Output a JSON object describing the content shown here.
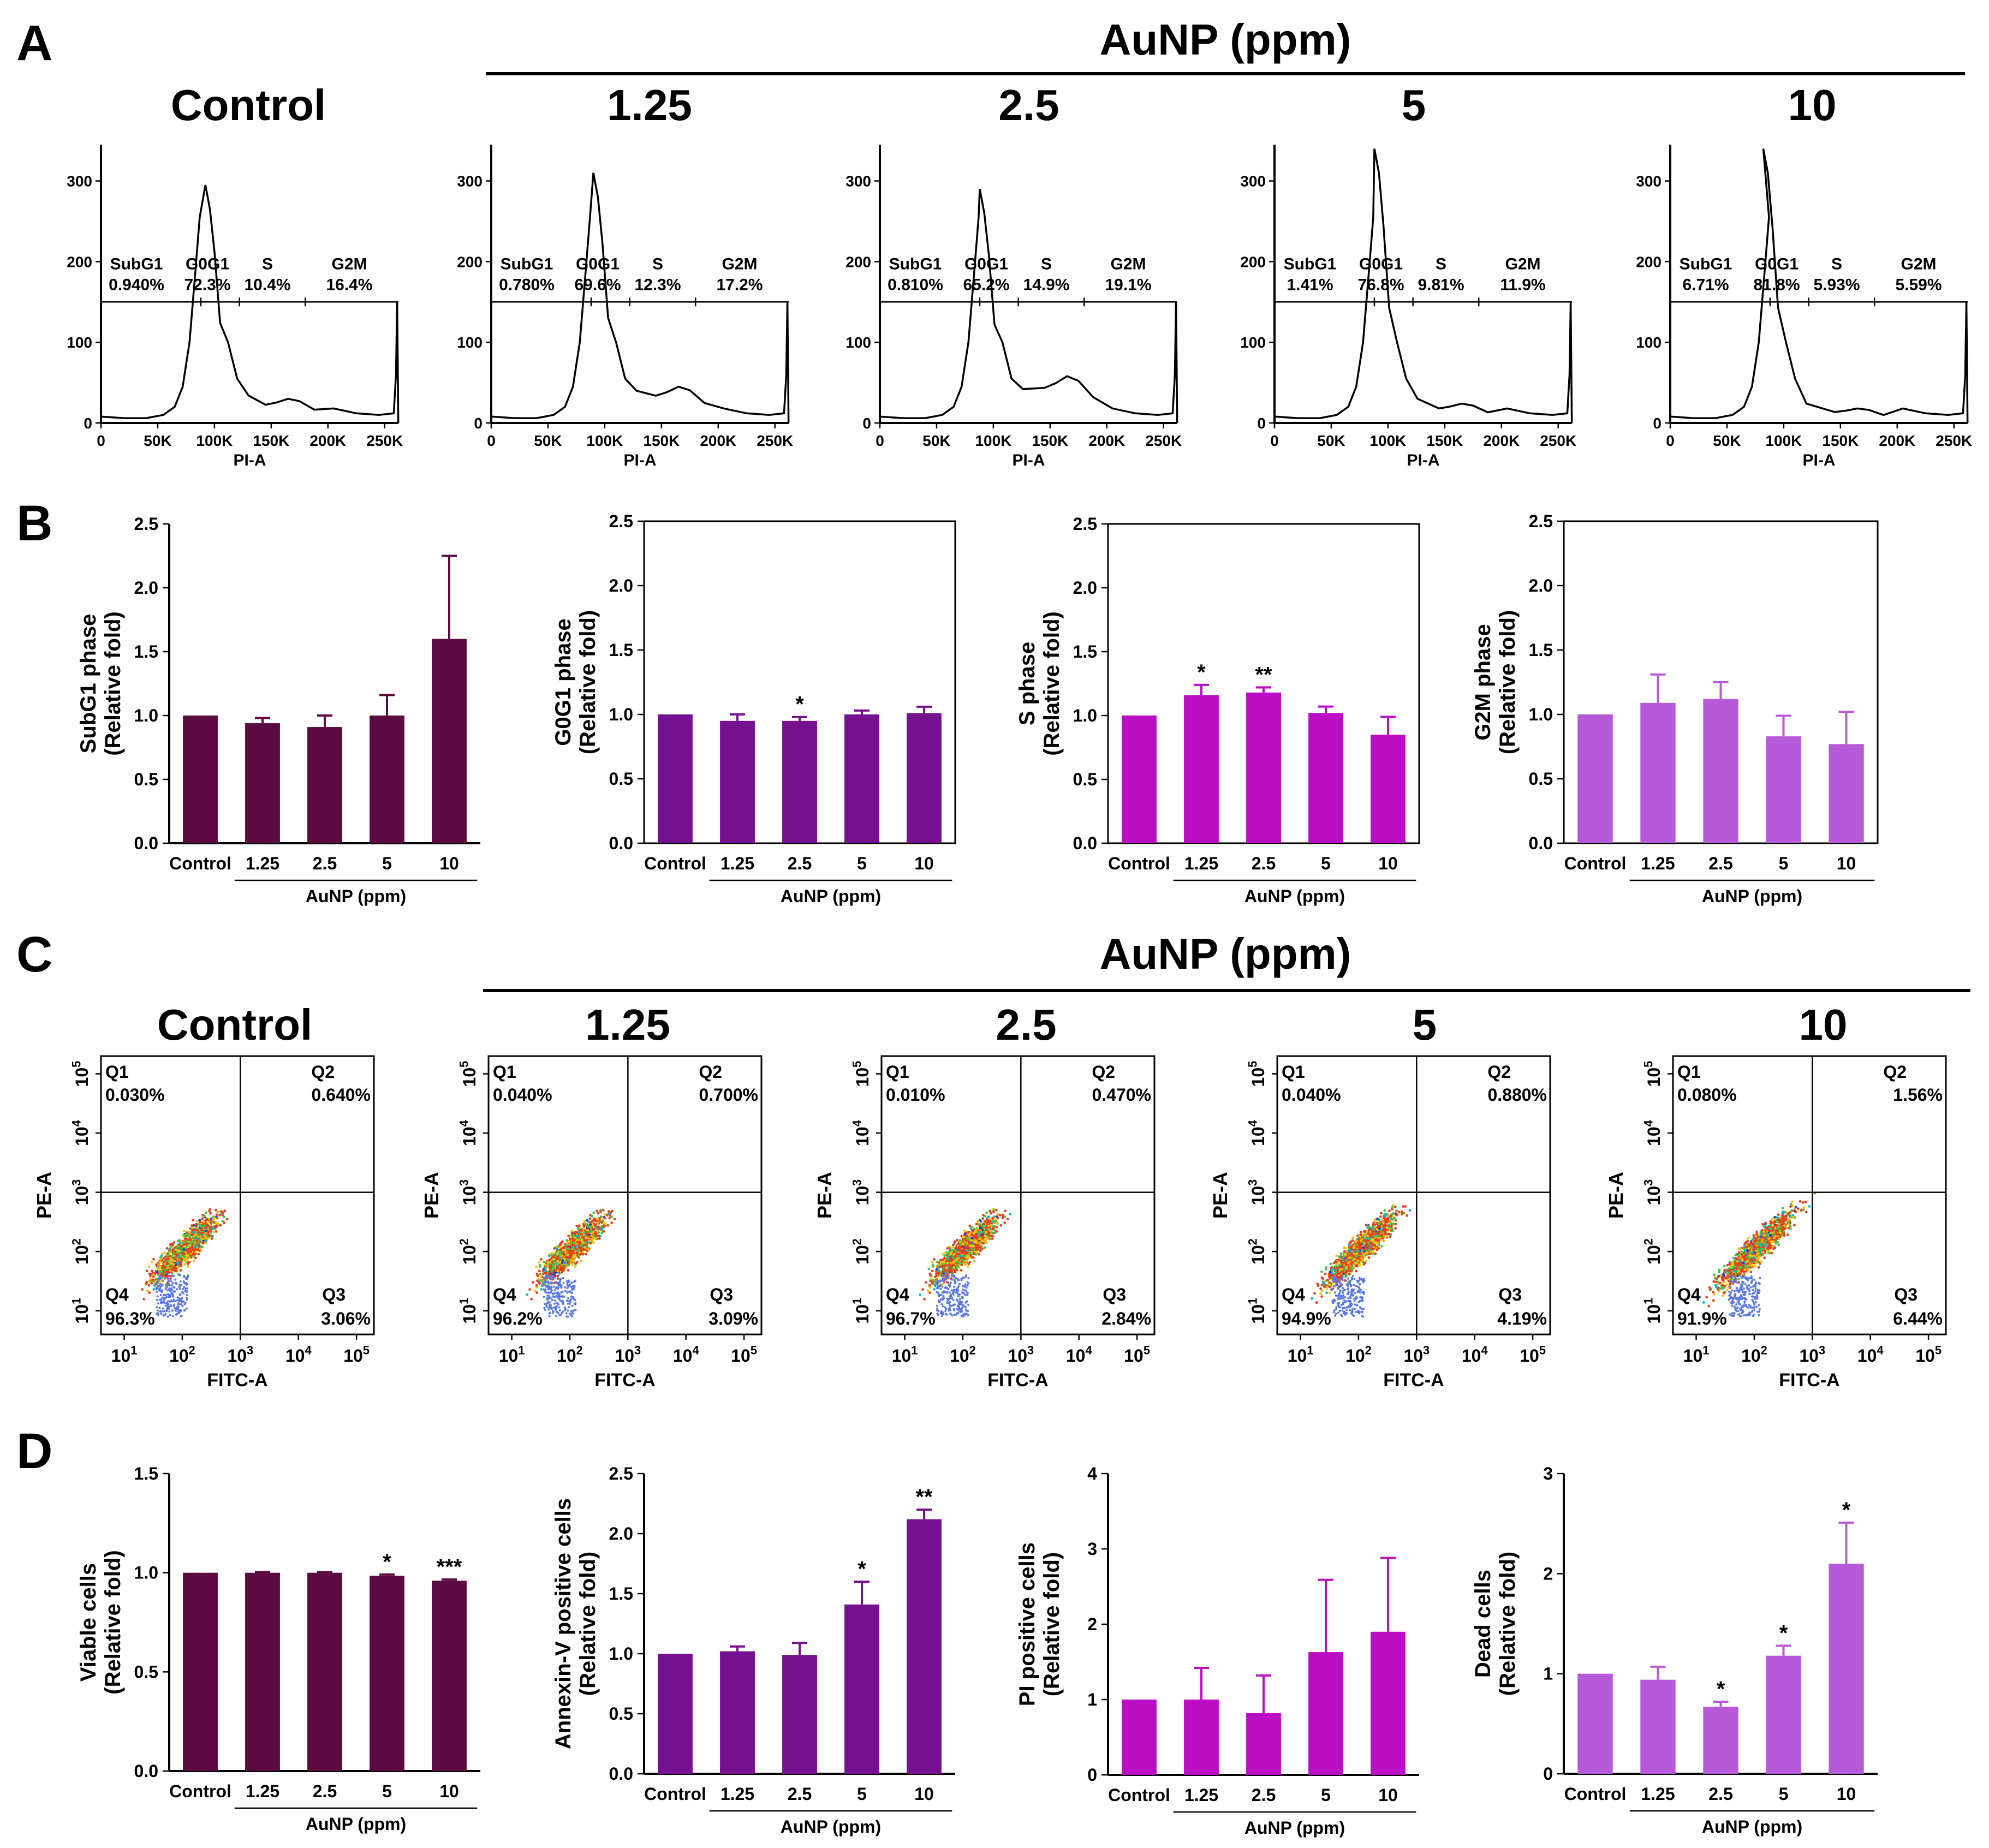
{
  "figure": {
    "panel_labels": [
      "A",
      "B",
      "C",
      "D"
    ],
    "group_header": "AuNP (ppm)",
    "group_axis_label": "AuNP (ppm)",
    "conditions": [
      "Control",
      "1.25",
      "2.5",
      "5",
      "10"
    ],
    "colors": {
      "B": [
        "#5c0a42",
        "#75108f",
        "#bb0dc3",
        "#b75ad9"
      ]
    }
  },
  "chart_data": [
    {
      "panel": "A",
      "type": "line",
      "title_row": [
        "Control",
        "1.25",
        "2.5",
        "5",
        "10"
      ],
      "xlabel": "PI-A",
      "xticks": [
        "0",
        "50K",
        "100K",
        "150K",
        "200K",
        "250K"
      ],
      "xlim": [
        0,
        262144
      ],
      "yticks": [
        "0",
        "100",
        "200",
        "300"
      ],
      "ylim": [
        0,
        345
      ],
      "gate_labels": [
        "SubG1",
        "G0G1",
        "S",
        "G2M"
      ],
      "gate_y": 150,
      "gate_bounds_k": [
        88,
        122,
        180
      ],
      "histograms": [
        {
          "peak_x_k": 92,
          "peak_y": 295,
          "shoulder_y": 34,
          "s_y": 30,
          "sub": "0.940%",
          "g0g1": "72.3%",
          "s": "10.4%",
          "g2m": "16.4%"
        },
        {
          "peak_x_k": 90,
          "peak_y": 310,
          "shoulder_y": 40,
          "s_y": 45,
          "sub": "0.780%",
          "g0g1": "69.6%",
          "s": "12.3%",
          "g2m": "17.2%"
        },
        {
          "peak_x_k": 88,
          "peak_y": 290,
          "shoulder_y": 42,
          "s_y": 58,
          "sub": "0.810%",
          "g0g1": "65.2%",
          "s": "14.9%",
          "g2m": "19.1%"
        },
        {
          "peak_x_k": 88,
          "peak_y": 340,
          "shoulder_y": 30,
          "s_y": 24,
          "sub": "1.41%",
          "g0g1": "76.8%",
          "s": "9.81%",
          "g2m": "11.9%"
        },
        {
          "peak_x_k": 82,
          "peak_y": 340,
          "shoulder_y": 24,
          "s_y": 18,
          "sub": "6.71%",
          "g0g1": "81.8%",
          "s": "5.93%",
          "g2m": "5.59%"
        }
      ]
    },
    {
      "panel": "B",
      "type": "bar",
      "categories": [
        "Control",
        "1.25",
        "2.5",
        "5",
        "10"
      ],
      "yticks": [
        "0.0",
        "0.5",
        "1.0",
        "1.5",
        "2.0",
        "2.5"
      ],
      "ylim": [
        0,
        2.5
      ],
      "charts": [
        {
          "ylabel": [
            "SubG1 phase",
            "(Relative fold)"
          ],
          "values": [
            1.0,
            0.94,
            0.91,
            1.0,
            1.6
          ],
          "errors": [
            0,
            0.04,
            0.09,
            0.16,
            0.65
          ],
          "sig": [
            "",
            "",
            "",
            "",
            ""
          ]
        },
        {
          "ylabel": [
            "G0G1 phase",
            "(Relative fold)"
          ],
          "values": [
            1.0,
            0.95,
            0.95,
            1.0,
            1.01
          ],
          "errors": [
            0,
            0.05,
            0.03,
            0.03,
            0.05
          ],
          "sig": [
            "",
            "",
            "*",
            "",
            ""
          ]
        },
        {
          "ylabel": [
            "S phase",
            "(Relative fold)"
          ],
          "values": [
            1.0,
            1.16,
            1.18,
            1.02,
            0.85
          ],
          "errors": [
            0,
            0.08,
            0.04,
            0.05,
            0.14
          ],
          "sig": [
            "",
            "*",
            "**",
            "",
            ""
          ]
        },
        {
          "ylabel": [
            "G2M phase",
            "(Relative fold)"
          ],
          "values": [
            1.0,
            1.09,
            1.12,
            0.83,
            0.77
          ],
          "errors": [
            0,
            0.22,
            0.13,
            0.16,
            0.25
          ],
          "sig": [
            "",
            "",
            "",
            "",
            ""
          ]
        }
      ]
    },
    {
      "panel": "C",
      "type": "scatter",
      "title_row": [
        "Control",
        "1.25",
        "2.5",
        "5",
        "10"
      ],
      "xlabel": "FITC-A",
      "ylabel": "PE-A",
      "xticks": [
        "10",
        "10",
        "10",
        "10",
        "10"
      ],
      "xtick_exp": [
        "1",
        "2",
        "3",
        "4",
        "5"
      ],
      "yticks": [
        "10",
        "10",
        "10",
        "10",
        "10"
      ],
      "ytick_exp": [
        "1",
        "2",
        "3",
        "4",
        "5"
      ],
      "quadrants": [
        "Q1",
        "Q2",
        "Q3",
        "Q4"
      ],
      "plots": [
        {
          "q1": "0.030%",
          "q2": "0.640%",
          "q3": "3.06%",
          "q4": "96.3%",
          "spread": 1.0
        },
        {
          "q1": "0.040%",
          "q2": "0.700%",
          "q3": "3.09%",
          "q4": "96.2%",
          "spread": 1.0
        },
        {
          "q1": "0.010%",
          "q2": "0.470%",
          "q3": "2.84%",
          "q4": "96.7%",
          "spread": 1.0
        },
        {
          "q1": "0.040%",
          "q2": "0.880%",
          "q3": "4.19%",
          "q4": "94.9%",
          "spread": 1.1
        },
        {
          "q1": "0.080%",
          "q2": "1.56%",
          "q3": "6.44%",
          "q4": "91.9%",
          "spread": 1.2
        }
      ]
    },
    {
      "panel": "D",
      "type": "bar",
      "categories": [
        "Control",
        "1.25",
        "2.5",
        "5",
        "10"
      ],
      "charts": [
        {
          "ylabel": [
            "Viable cells",
            "(Relative fold)"
          ],
          "values": [
            1.0,
            1.0,
            1.0,
            0.985,
            0.96
          ],
          "errors": [
            0,
            0.004,
            0.004,
            0.006,
            0.006
          ],
          "sig": [
            "",
            "",
            "",
            "*",
            "***"
          ],
          "yticks": [
            "0.0",
            "0.5",
            "1.0",
            "1.5"
          ],
          "ylim": [
            0,
            1.5
          ]
        },
        {
          "ylabel": [
            "Annexin-V positive cells",
            "(Relative fold)"
          ],
          "values": [
            1.0,
            1.02,
            0.99,
            1.41,
            2.12
          ],
          "errors": [
            0,
            0.04,
            0.1,
            0.19,
            0.08
          ],
          "sig": [
            "",
            "",
            "",
            "*",
            "**"
          ],
          "yticks": [
            "0.0",
            "0.5",
            "1.0",
            "1.5",
            "2.0",
            "2.5"
          ],
          "ylim": [
            0,
            2.5
          ]
        },
        {
          "ylabel": [
            "PI positive cells",
            "(Relative fold)"
          ],
          "values": [
            1.0,
            1.0,
            0.82,
            1.63,
            1.9
          ],
          "errors": [
            0,
            0.42,
            0.5,
            0.96,
            0.98
          ],
          "sig": [
            "",
            "",
            "",
            "",
            ""
          ],
          "yticks": [
            "0",
            "1",
            "2",
            "3",
            "4"
          ],
          "ylim": [
            0,
            4
          ]
        },
        {
          "ylabel": [
            "Dead cells",
            "(Relative fold)"
          ],
          "values": [
            1.0,
            0.94,
            0.67,
            1.18,
            2.1
          ],
          "errors": [
            0,
            0.13,
            0.05,
            0.1,
            0.41
          ],
          "sig": [
            "",
            "",
            "*",
            "*",
            "*"
          ],
          "yticks": [
            "0",
            "1",
            "2",
            "3"
          ],
          "ylim": [
            0,
            3
          ]
        }
      ]
    }
  ]
}
